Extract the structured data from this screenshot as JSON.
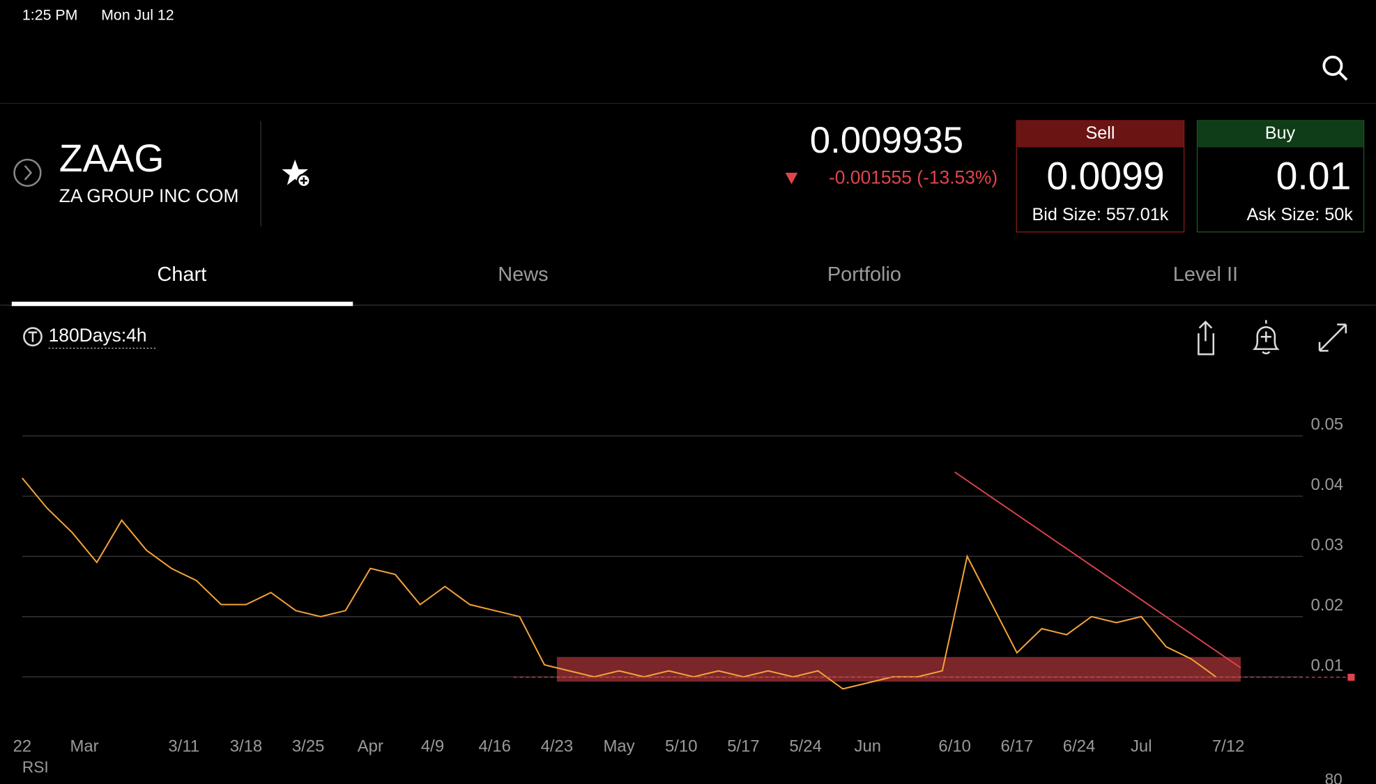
{
  "status_bar": {
    "time": "1:25 PM",
    "date": "Mon Jul 12"
  },
  "quote": {
    "symbol": "ZAAG",
    "name": "ZA GROUP INC COM",
    "price": "0.009935",
    "change": "-0.001555 (-13.53%)"
  },
  "sell": {
    "label": "Sell",
    "price": "0.0099",
    "size": "Bid Size: 557.01k"
  },
  "buy": {
    "label": "Buy",
    "price": "0.01",
    "size": "Ask Size: 50k"
  },
  "tabs": [
    "Chart",
    "News",
    "Portfolio",
    "Level II"
  ],
  "toolbar": {
    "interval": "180Days:4h"
  },
  "indicator": {
    "label": "RSI",
    "level": "80"
  },
  "chart_data": {
    "type": "line",
    "color": "#f5a33a",
    "x": [
      0,
      2,
      4,
      6,
      8,
      10,
      12,
      14,
      16,
      18,
      20,
      22,
      24,
      26,
      28,
      30,
      32,
      34,
      36,
      38,
      40,
      42,
      44,
      46,
      48,
      50,
      52,
      54,
      56,
      58,
      60,
      62,
      64,
      66,
      68,
      70,
      72,
      74,
      76,
      78,
      80,
      82,
      84,
      86,
      88,
      90,
      92,
      94,
      96
    ],
    "values": [
      0.043,
      0.038,
      0.034,
      0.029,
      0.036,
      0.031,
      0.028,
      0.026,
      0.022,
      0.022,
      0.024,
      0.021,
      0.02,
      0.021,
      0.028,
      0.027,
      0.022,
      0.025,
      0.022,
      0.021,
      0.02,
      0.012,
      0.011,
      0.01,
      0.011,
      0.01,
      0.011,
      0.01,
      0.011,
      0.01,
      0.011,
      0.01,
      0.011,
      0.008,
      0.009,
      0.01,
      0.01,
      0.011,
      0.03,
      0.022,
      0.014,
      0.018,
      0.017,
      0.02,
      0.019,
      0.02,
      0.015,
      0.013,
      0.01
    ],
    "xlim": [
      0,
      103
    ],
    "xticks": [
      {
        "value": 0,
        "label": "22"
      },
      {
        "value": 5,
        "label": "Mar"
      },
      {
        "value": 13,
        "label": "3/11"
      },
      {
        "value": 18,
        "label": "3/18"
      },
      {
        "value": 23,
        "label": "3/25"
      },
      {
        "value": 28,
        "label": "Apr"
      },
      {
        "value": 33,
        "label": "4/9"
      },
      {
        "value": 38,
        "label": "4/16"
      },
      {
        "value": 43,
        "label": "4/23"
      },
      {
        "value": 48,
        "label": "May"
      },
      {
        "value": 53,
        "label": "5/10"
      },
      {
        "value": 58,
        "label": "5/17"
      },
      {
        "value": 63,
        "label": "5/24"
      },
      {
        "value": 68,
        "label": "Jun"
      },
      {
        "value": 75,
        "label": "6/10"
      },
      {
        "value": 80,
        "label": "6/17"
      },
      {
        "value": 85,
        "label": "6/24"
      },
      {
        "value": 90,
        "label": "Jul"
      },
      {
        "value": 97,
        "label": "7/12"
      }
    ],
    "ylim": [
      0.0008,
      0.0554
    ],
    "yticks": [
      0.01,
      0.02,
      0.03,
      0.04,
      0.05
    ],
    "grid": true,
    "support_zone": {
      "x": [
        43,
        98
      ],
      "y": [
        0.0092,
        0.0133
      ],
      "color": "#e0454b"
    },
    "trendline": {
      "x": [
        75,
        98
      ],
      "y": [
        0.044,
        0.0115
      ],
      "color": "#e0454b"
    },
    "last_price": 0.009935
  }
}
